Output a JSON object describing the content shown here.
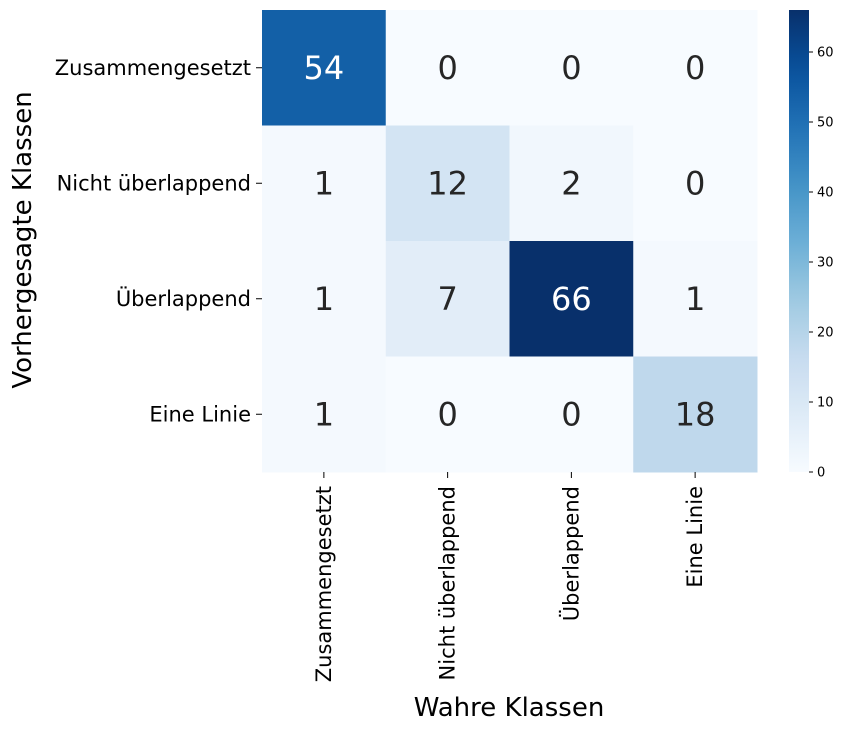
{
  "chart_data": {
    "type": "heatmap",
    "title": "",
    "xlabel": "Wahre Klassen",
    "ylabel": "Vorhergesagte Klassen",
    "x_categories": [
      "Zusammengesetzt",
      "Nicht überlappend",
      "Überlappend",
      "Eine Linie"
    ],
    "y_categories": [
      "Zusammengesetzt",
      "Nicht überlappend",
      "Überlappend",
      "Eine Linie"
    ],
    "matrix": [
      [
        54,
        0,
        0,
        0
      ],
      [
        1,
        12,
        2,
        0
      ],
      [
        1,
        7,
        66,
        1
      ],
      [
        1,
        0,
        0,
        18
      ]
    ],
    "colormap": "Blues",
    "vmin": 0,
    "vmax": 66,
    "colorbar_ticks": [
      0,
      10,
      20,
      30,
      40,
      50,
      60
    ],
    "annotations": true
  }
}
